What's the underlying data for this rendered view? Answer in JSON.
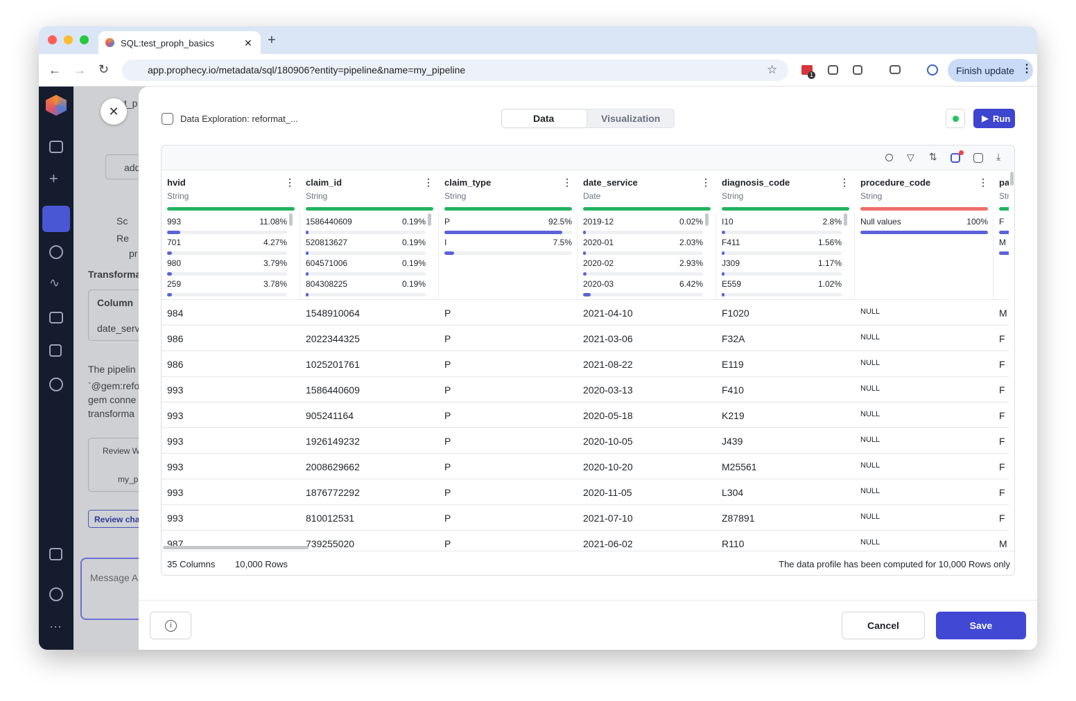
{
  "browser": {
    "tab_title": "SQL:test_proph_basics",
    "url": "app.prophecy.io/metadata/sql/180906?entity=pipeline&name=my_pipeline",
    "extension_badge": "1",
    "finish_update": "Finish update"
  },
  "background": {
    "breadcrumb": "st_p",
    "expander": "add",
    "bullets": [
      "Sc",
      "Re",
      "pr"
    ],
    "section_title": "Transforma",
    "table_header": "Column",
    "table_cell": "date_serv",
    "paragraph": [
      "The pipelin",
      "`@gem:refo",
      "gem conne",
      "transforma"
    ],
    "review_title": "Review W",
    "pipeline_link": "my_p",
    "review_button": "Review cha",
    "message_placeholder": "Message A"
  },
  "dialog": {
    "title": "Data Exploration: reformat_...",
    "tabs": [
      "Data",
      "Visualization"
    ],
    "run": "Run",
    "columns": [
      {
        "name": "hvid",
        "type": "String",
        "bar_color": "#22b35e",
        "profile": [
          {
            "label": "993",
            "pct": "11.08%"
          },
          {
            "label": "701",
            "pct": "4.27%"
          },
          {
            "label": "980",
            "pct": "3.79%"
          },
          {
            "label": "259",
            "pct": "3.78%"
          }
        ]
      },
      {
        "name": "claim_id",
        "type": "String",
        "bar_color": "#22b35e",
        "profile": [
          {
            "label": "1586440609",
            "pct": "0.19%"
          },
          {
            "label": "520813627",
            "pct": "0.19%"
          },
          {
            "label": "604571006",
            "pct": "0.19%"
          },
          {
            "label": "804308225",
            "pct": "0.19%"
          }
        ]
      },
      {
        "name": "claim_type",
        "type": "String",
        "bar_color": "#22b35e",
        "profile": [
          {
            "label": "P",
            "pct": "92.5%"
          },
          {
            "label": "I",
            "pct": "7.5%"
          }
        ]
      },
      {
        "name": "date_service",
        "type": "Date",
        "bar_color": "#22b35e",
        "profile": [
          {
            "label": "2019-12",
            "pct": "0.02%"
          },
          {
            "label": "2020-01",
            "pct": "2.03%"
          },
          {
            "label": "2020-02",
            "pct": "2.93%"
          },
          {
            "label": "2020-03",
            "pct": "6.42%"
          }
        ]
      },
      {
        "name": "diagnosis_code",
        "type": "String",
        "bar_color": "#22b35e",
        "profile": [
          {
            "label": "I10",
            "pct": "2.8%"
          },
          {
            "label": "F411",
            "pct": "1.56%"
          },
          {
            "label": "J309",
            "pct": "1.17%"
          },
          {
            "label": "E559",
            "pct": "1.02%"
          }
        ]
      },
      {
        "name": "procedure_code",
        "type": "String",
        "bar_color": "#ec6f6a",
        "profile": [
          {
            "label": "Null values",
            "pct": "100%"
          }
        ]
      },
      {
        "name": "pa",
        "type": "Str",
        "bar_color": "#22b35e",
        "profile": [
          {
            "label": "F"
          },
          {
            "label": "M"
          }
        ]
      }
    ],
    "rows": [
      [
        "984",
        "1548910064",
        "P",
        "2021-04-10",
        "F1020",
        "NULL",
        "M"
      ],
      [
        "986",
        "2022344325",
        "P",
        "2021-03-06",
        "F32A",
        "NULL",
        "F"
      ],
      [
        "986",
        "1025201761",
        "P",
        "2021-08-22",
        "E119",
        "NULL",
        "F"
      ],
      [
        "993",
        "1586440609",
        "P",
        "2020-03-13",
        "F410",
        "NULL",
        "F"
      ],
      [
        "993",
        "905241164",
        "P",
        "2020-05-18",
        "K219",
        "NULL",
        "F"
      ],
      [
        "993",
        "1926149232",
        "P",
        "2020-10-05",
        "J439",
        "NULL",
        "F"
      ],
      [
        "993",
        "2008629662",
        "P",
        "2020-10-20",
        "M25561",
        "NULL",
        "F"
      ],
      [
        "993",
        "1876772292",
        "P",
        "2020-11-05",
        "L304",
        "NULL",
        "F"
      ],
      [
        "993",
        "810012531",
        "P",
        "2021-07-10",
        "Z87891",
        "NULL",
        "F"
      ],
      [
        "987",
        "739255020",
        "P",
        "2021-06-02",
        "R110",
        "NULL",
        "M"
      ]
    ],
    "footer_counts": [
      "35 Columns",
      "10,000 Rows"
    ],
    "footer_note": "The data profile has been computed for 10,000 Rows only",
    "cancel": "Cancel",
    "save": "Save"
  }
}
